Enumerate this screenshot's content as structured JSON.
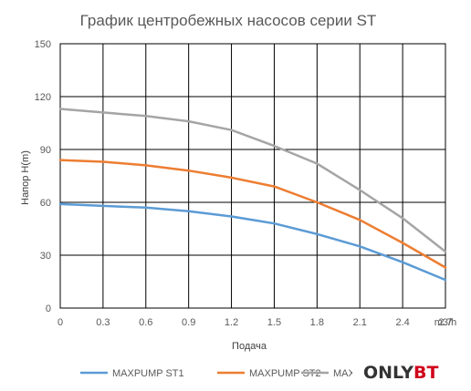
{
  "chart_data": {
    "type": "line",
    "title": "График центробежных насосов серии ST",
    "xlabel": "Подача",
    "ylabel": "Напор  H(m)",
    "x_unit": "m3/h",
    "x": [
      0,
      0.3,
      0.6,
      0.9,
      1.2,
      1.5,
      1.8,
      2.1,
      2.4,
      2.7
    ],
    "xlim": [
      0,
      2.7
    ],
    "ylim": [
      0,
      150
    ],
    "x_ticks": [
      "0",
      "0.3",
      "0.6",
      "0.9",
      "1.2",
      "1.5",
      "1.8",
      "2.1",
      "2.4",
      "2.7"
    ],
    "y_ticks": [
      "0",
      "30",
      "60",
      "90",
      "120",
      "150"
    ],
    "grid": true,
    "legend_position": "bottom",
    "series": [
      {
        "name": "MAXPUMP ST1",
        "color": "#5b9bd5",
        "values": [
          59,
          58,
          57,
          55,
          52,
          48,
          42,
          35,
          26,
          16
        ]
      },
      {
        "name": "MAXPUMP ST2",
        "color": "#ed7d31",
        "values": [
          84,
          83,
          81,
          78,
          74,
          69,
          60,
          50,
          37,
          23
        ]
      },
      {
        "name": "MAXPUMP ST3",
        "color": "#a5a5a5",
        "values": [
          113,
          111,
          109,
          106,
          101,
          92,
          82,
          67,
          51,
          32
        ]
      }
    ]
  },
  "watermark": {
    "text_a": "ONLY",
    "text_b": "BT",
    "color_a": "#333333",
    "color_b": "#d0021b"
  }
}
